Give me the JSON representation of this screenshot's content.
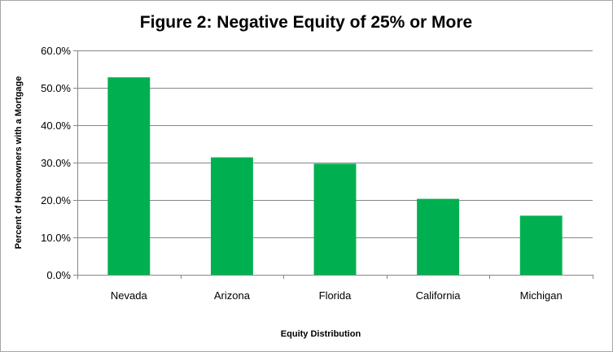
{
  "chart_data": {
    "type": "bar",
    "title": "Figure 2: Negative Equity of 25% or More",
    "xlabel": "Equity Distribution",
    "ylabel": "Percent of Homeowners with a Mortgage",
    "categories": [
      "Nevada",
      "Arizona",
      "Florida",
      "California",
      "Michigan"
    ],
    "values": [
      52.8,
      31.4,
      29.7,
      20.3,
      15.8
    ],
    "ylim": [
      0,
      60
    ],
    "yticks": [
      0,
      10,
      20,
      30,
      40,
      50,
      60
    ],
    "ytick_labels": [
      "0.0%",
      "10.0%",
      "20.0%",
      "30.0%",
      "40.0%",
      "50.0%",
      "60.0%"
    ],
    "grid": true,
    "legend": "none",
    "bar_color": "#00b050",
    "grid_color": "#878787"
  }
}
